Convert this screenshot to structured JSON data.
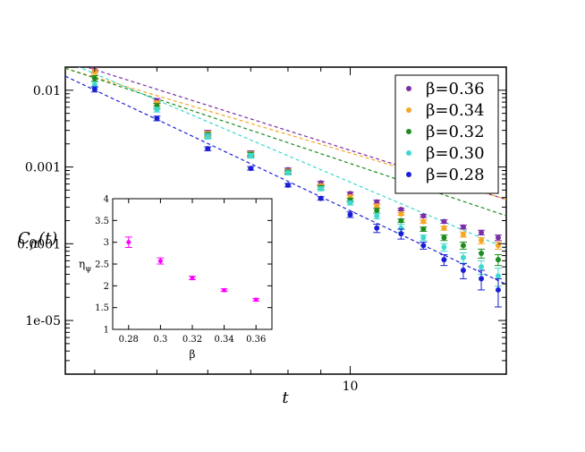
{
  "chart_data": [
    {
      "type": "scatter",
      "x_scale": "log",
      "y_scale": "log",
      "xlim": [
        3.6,
        17.5
      ],
      "ylim": [
        2e-06,
        0.02
      ],
      "x_tick_labels": [
        {
          "value": 10,
          "label": "10"
        }
      ],
      "y_tick_labels": [
        {
          "value": 0.01,
          "label": "0.01"
        },
        {
          "value": 0.001,
          "label": "0.001"
        },
        {
          "value": 0.0001,
          "label": "0.0001"
        },
        {
          "value": 1e-05,
          "label": "1e-05"
        }
      ],
      "xlabel": "t",
      "ylabel_main": "C",
      "ylabel_sub": "ft",
      "ylabel_tail": "(t)",
      "legend_position": "top-right",
      "series": [
        {
          "name": "β=0.36",
          "color": "#7b2fa6",
          "x": [
            4,
            5,
            6,
            7,
            8,
            9,
            10,
            11,
            12,
            13,
            14,
            15,
            16,
            17
          ],
          "y": [
            0.0186,
            0.0073,
            0.0028,
            0.00152,
            0.00092,
            0.00062,
            0.00045,
            0.00035,
            0.00028,
            0.00023,
            0.000195,
            0.000165,
            0.00014,
            0.00012
          ],
          "err": [
            0.0015,
            0.0005,
            0.0002,
            0.0001,
            5e-05,
            3e-05,
            2e-05,
            2e-05,
            1e-05,
            1e-05,
            1e-05,
            1e-05,
            1e-05,
            1e-05
          ],
          "fit": {
            "a": 0.72,
            "p": 2.64
          }
        },
        {
          "name": "β=0.34",
          "color": "#f5a623",
          "x": [
            4,
            5,
            6,
            7,
            8,
            9,
            10,
            11,
            12,
            13,
            14,
            15,
            16,
            17
          ],
          "y": [
            0.0175,
            0.0068,
            0.0027,
            0.00148,
            0.00088,
            0.00057,
            0.00041,
            0.00031,
            0.000245,
            0.000195,
            0.00016,
            0.000132,
            0.00011,
            9.5e-05
          ],
          "err": [
            0.0014,
            0.0005,
            0.0002,
            0.0001,
            5e-05,
            3e-05,
            2e-05,
            2e-05,
            1e-05,
            1e-05,
            1e-05,
            1e-05,
            1e-05,
            1e-05
          ],
          "fit": {
            "a": 0.46,
            "p": 2.48
          }
        },
        {
          "name": "β=0.32",
          "color": "#1e8c1e",
          "x": [
            4,
            5,
            6,
            7,
            8,
            9,
            10,
            11,
            12,
            13,
            14,
            15,
            16,
            17
          ],
          "y": [
            0.0143,
            0.0062,
            0.0026,
            0.00145,
            0.00086,
            0.00054,
            0.00037,
            0.00027,
            0.0002,
            0.000155,
            0.00012,
            9.5e-05,
            7.5e-05,
            6.2e-05
          ],
          "err": [
            0.0012,
            0.0005,
            0.0002,
            0.0001,
            5e-05,
            3e-05,
            2e-05,
            2e-05,
            1e-05,
            1e-05,
            1e-05,
            1e-05,
            1e-05,
            1e-05
          ],
          "fit": {
            "a": 0.7,
            "p": 2.8
          }
        },
        {
          "name": "β=0.30",
          "color": "#3fd8cf",
          "x": [
            4,
            5,
            6,
            7,
            8,
            9,
            10,
            11,
            12,
            13,
            14,
            15,
            16,
            17
          ],
          "y": [
            0.0118,
            0.0056,
            0.0025,
            0.0014,
            0.00084,
            0.00052,
            0.00034,
            0.00023,
            0.00016,
            0.00012,
            9e-05,
            6.6e-05,
            5e-05,
            3.8e-05
          ],
          "err": [
            0.001,
            0.0004,
            0.0002,
            0.0001,
            5e-05,
            3e-05,
            2e-05,
            2e-05,
            2e-05,
            1e-05,
            1e-05,
            1e-05,
            1e-05,
            1e-05
          ],
          "fit": {
            "a": 2.25,
            "p": 3.55
          }
        },
        {
          "name": "β=0.28",
          "color": "#1a1fd6",
          "x": [
            4,
            5,
            6,
            7,
            8,
            9,
            10,
            11,
            12,
            13,
            14,
            15,
            16,
            17
          ],
          "y": [
            0.0103,
            0.0043,
            0.00173,
            0.00096,
            0.00058,
            0.00039,
            0.00024,
            0.00016,
            0.000135,
            9.5e-05,
            6.2e-05,
            4.5e-05,
            3.5e-05,
            2.5e-05
          ],
          "err": [
            0.0008,
            0.0003,
            0.0001,
            5e-05,
            3e-05,
            2e-05,
            2e-05,
            2e-05,
            2e-05,
            1e-05,
            1e-05,
            1e-05,
            1e-05,
            1e-05
          ],
          "fit": {
            "a": 2.4,
            "p": 3.95
          }
        }
      ]
    },
    {
      "type": "scatter",
      "xlim": [
        0.27,
        0.37
      ],
      "ylim": [
        1,
        4
      ],
      "x_ticks": [
        0.28,
        0.3,
        0.32,
        0.34,
        0.36
      ],
      "x_tick_labels": [
        "0.28",
        "0.3",
        "0.32",
        "0.34",
        "0.36"
      ],
      "y_ticks": [
        1,
        1.5,
        2,
        2.5,
        3,
        3.5,
        4
      ],
      "y_tick_labels": [
        "1",
        "1.5",
        "2",
        "2.5",
        "3",
        "3.5",
        "4"
      ],
      "xlabel": "β",
      "ylabel": "η",
      "ylabel_sub": "ψ",
      "color": "#ff00ff",
      "x": [
        0.28,
        0.3,
        0.32,
        0.34,
        0.36
      ],
      "y": [
        3.0,
        2.57,
        2.18,
        1.9,
        1.68
      ],
      "err": [
        0.12,
        0.07,
        0.04,
        0.03,
        0.03
      ]
    }
  ]
}
